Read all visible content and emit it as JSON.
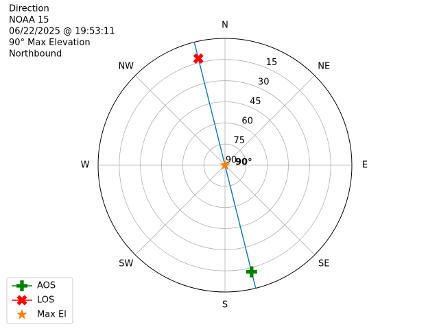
{
  "chart_data": {
    "type": "polar",
    "title_lines": [
      "Direction",
      "NOAA 15",
      "06/22/2025 @ 19:53:11",
      "90° Max Elevation",
      "Northbound"
    ],
    "thetaticks": [
      {
        "value": 0,
        "label": "N"
      },
      {
        "value": 45,
        "label": "NE"
      },
      {
        "value": 90,
        "label": "E"
      },
      {
        "value": 135,
        "label": "SE"
      },
      {
        "value": 180,
        "label": "S"
      },
      {
        "value": 225,
        "label": "SW"
      },
      {
        "value": 270,
        "label": "W"
      },
      {
        "value": 315,
        "label": "NW"
      }
    ],
    "rlim": [
      90,
      0
    ],
    "rticks": [
      15,
      30,
      45,
      60,
      75,
      90
    ],
    "grid": true,
    "series": [
      {
        "color": "#1f77b4",
        "marker": "none",
        "x": [
          346,
          346,
          166
        ],
        "values": [
          0,
          90,
          0
        ]
      },
      {
        "name": "AOS",
        "color": "#008000",
        "marker": "plus",
        "x": [
          166
        ],
        "values": [
          12
        ]
      },
      {
        "name": "LOS",
        "color": "#ff0000",
        "marker": "x",
        "x": [
          346
        ],
        "values": [
          12
        ]
      },
      {
        "name": "Max El",
        "color": "#ff7f0e",
        "marker": "star",
        "x": [
          0
        ],
        "values": [
          90
        ]
      }
    ],
    "annotation": "90°",
    "legend": "lower left"
  }
}
